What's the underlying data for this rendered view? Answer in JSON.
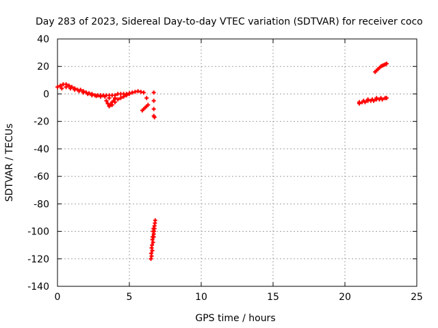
{
  "chart_data": {
    "type": "scatter",
    "title": "Day 283 of 2023, Sidereal Day-to-day VTEC variation (SDTVAR) for receiver coco",
    "xlabel": "GPS time / hours",
    "ylabel": "SDTVAR / TECUs",
    "xlim": [
      0,
      25
    ],
    "ylim": [
      -140,
      40
    ],
    "xticks": [
      0,
      5,
      10,
      15,
      20,
      25
    ],
    "yticks": [
      40,
      20,
      0,
      -20,
      -40,
      -60,
      -80,
      -100,
      -120,
      -140
    ],
    "grid": true,
    "marker": "+",
    "color": "#ff0000",
    "series": [
      {
        "name": "SDTVAR",
        "segments": [
          {
            "x": [
              0.0,
              0.2,
              0.4,
              0.6,
              0.8,
              1.0,
              1.2,
              1.4,
              1.6,
              1.8,
              2.0,
              2.2,
              2.4,
              2.6,
              2.8,
              3.0,
              3.2,
              3.4,
              3.6,
              3.8,
              4.0,
              4.2,
              4.4,
              4.6,
              4.8,
              5.0,
              5.2,
              5.4,
              5.6,
              5.8,
              6.0,
              6.2
            ],
            "y": [
              5,
              6,
              7,
              7,
              6,
              5,
              4,
              3,
              3,
              2,
              1,
              0.5,
              0,
              -1,
              -1,
              -1,
              -1,
              -1,
              -1,
              -1,
              -1,
              0,
              0,
              0,
              0,
              0.5,
              1,
              1.5,
              2,
              1.5,
              1,
              -3
            ]
          },
          {
            "x": [
              0.3,
              0.6,
              0.9,
              1.2,
              1.5,
              1.8,
              2.1,
              2.4,
              2.7,
              3.0,
              3.3,
              3.6,
              3.8,
              4.0,
              4.2,
              4.4,
              4.6,
              4.8,
              5.0
            ],
            "y": [
              4,
              5,
              4,
              3,
              2,
              1,
              0,
              -1,
              -1.5,
              -2,
              -2,
              -3,
              -8,
              -6,
              -4,
              -3,
              -2,
              -1,
              0
            ]
          },
          {
            "x": [
              3.4,
              3.5,
              3.6,
              3.7,
              3.8,
              3.9,
              4.0
            ],
            "y": [
              -5,
              -7,
              -9,
              -8,
              -6,
              -5,
              -3
            ]
          },
          {
            "x": [
              5.9,
              6.0,
              6.1,
              6.2,
              6.3
            ],
            "y": [
              -12,
              -11,
              -10,
              -9,
              -8
            ]
          },
          {
            "x": [
              6.7,
              6.7,
              6.7,
              6.7,
              6.75
            ],
            "y": [
              1,
              -5,
              -11,
              -16,
              -17
            ]
          },
          {
            "x": [
              6.5,
              6.52,
              6.55,
              6.58,
              6.6,
              6.62,
              6.65,
              6.68,
              6.7,
              6.72,
              6.75,
              6.78,
              6.8
            ],
            "y": [
              -120,
              -116,
              -112,
              -110,
              -106,
              -104,
              -100,
              -98,
              -102,
              -100,
              -96,
              -94,
              -92
            ]
          },
          {
            "x": [
              6.55,
              6.6,
              6.65,
              6.7,
              6.75
            ],
            "y": [
              -118,
              -114,
              -108,
              -104,
              -98
            ]
          },
          {
            "x": [
              21.0,
              21.2,
              21.4,
              21.6,
              21.8,
              22.0,
              22.2,
              22.4,
              22.6,
              22.8,
              22.9
            ],
            "y": [
              -7,
              -6,
              -6,
              -5,
              -5,
              -5,
              -4,
              -4,
              -4,
              -3,
              -3
            ]
          },
          {
            "x": [
              21.0,
              21.3,
              21.6,
              21.9,
              22.2,
              22.5,
              22.8
            ],
            "y": [
              -6,
              -5,
              -4,
              -4,
              -3,
              -3,
              -3
            ]
          },
          {
            "x": [
              22.1,
              22.2,
              22.3,
              22.4,
              22.5,
              22.6,
              22.7,
              22.8,
              22.9
            ],
            "y": [
              16,
              17,
              18,
              19,
              20,
              20.5,
              21,
              21.5,
              22
            ]
          }
        ]
      }
    ]
  }
}
